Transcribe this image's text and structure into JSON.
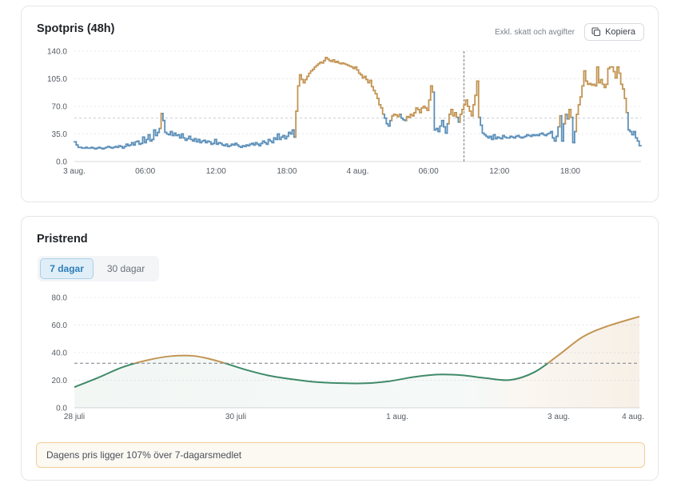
{
  "spot": {
    "title": "Spotpris (48h)",
    "note": "Exkl. skatt och avgifter",
    "copy_label": "Kopiera"
  },
  "trend": {
    "title": "Pristrend",
    "tabs": [
      {
        "label": "7 dagar",
        "active": true
      },
      {
        "label": "30 dagar",
        "active": false
      }
    ],
    "info": "Dagens pris ligger 107% över 7-dagarsmedlet"
  },
  "colors": {
    "below_avg": "#5b8fb9",
    "above_avg": "#c39554",
    "trend_low": "#3f8a68",
    "trend_high": "#c39554"
  },
  "chart_data": [
    {
      "type": "line",
      "style": "step",
      "title": "Spotpris (48h)",
      "y_ticks": [
        "0.0",
        "35.0",
        "70.0",
        "105.0",
        "140.0"
      ],
      "ylim": [
        0,
        140
      ],
      "x_ticks": [
        "3 aug.",
        "06:00",
        "12:00",
        "18:00",
        "4 aug.",
        "06:00",
        "12:00",
        "18:00"
      ],
      "x_tick_hours": [
        0,
        6,
        12,
        18,
        24,
        30,
        36,
        42
      ],
      "x_range_hours": [
        0,
        48
      ],
      "average": 55,
      "current_hour": 33,
      "interval_minutes": 15,
      "values": [
        25,
        21,
        18,
        18,
        17,
        17,
        18,
        17,
        17,
        18,
        17,
        16,
        17,
        18,
        17,
        16,
        17,
        18,
        19,
        18,
        17,
        18,
        19,
        18,
        20,
        19,
        17,
        19,
        22,
        20,
        21,
        24,
        21,
        25,
        26,
        22,
        23,
        31,
        24,
        28,
        34,
        26,
        28,
        40,
        33,
        37,
        42,
        61,
        52,
        37,
        35,
        34,
        38,
        33,
        36,
        33,
        34,
        30,
        35,
        30,
        27,
        29,
        32,
        28,
        26,
        29,
        25,
        28,
        24,
        26,
        27,
        24,
        26,
        25,
        22,
        23,
        28,
        22,
        24,
        23,
        21,
        20,
        22,
        19,
        20,
        22,
        21,
        23,
        21,
        19,
        18,
        20,
        19,
        21,
        20,
        22,
        23,
        21,
        24,
        22,
        20,
        23,
        26,
        24,
        22,
        28,
        26,
        24,
        30,
        28,
        35,
        28,
        31,
        33,
        29,
        32,
        37,
        35,
        40,
        31,
        64,
        96,
        110,
        104,
        100,
        104,
        108,
        112,
        115,
        117,
        120,
        122,
        124,
        126,
        125,
        128,
        132,
        130,
        128,
        127,
        129,
        126,
        127,
        125,
        124,
        125,
        124,
        123,
        122,
        121,
        120,
        118,
        120,
        116,
        112,
        110,
        106,
        108,
        104,
        100,
        103,
        95,
        90,
        86,
        80,
        72,
        68,
        60,
        55,
        48,
        45,
        52,
        58,
        60,
        59,
        57,
        60,
        55,
        53,
        52,
        57,
        56,
        60,
        58,
        62,
        68,
        66,
        62,
        68,
        70,
        68,
        65,
        78,
        96,
        88,
        40,
        42,
        38,
        45,
        52,
        44,
        36,
        48,
        60,
        66,
        58,
        62,
        56,
        50,
        60,
        66,
        72,
        78,
        70,
        64,
        58,
        72,
        84,
        102,
        56,
        46,
        36,
        34,
        32,
        30,
        32,
        28,
        34,
        29,
        31,
        30,
        29,
        33,
        31,
        30,
        30,
        32,
        31,
        30,
        32,
        33,
        31,
        30,
        31,
        32,
        34,
        33,
        32,
        34,
        33,
        34,
        33,
        35,
        36,
        34,
        33,
        35,
        36,
        38,
        30,
        26,
        32,
        44,
        58,
        26,
        48,
        60,
        54,
        66,
        56,
        24,
        38,
        60,
        72,
        82,
        96,
        115,
        102,
        98,
        99,
        97,
        98,
        96,
        120,
        100,
        104,
        98,
        94,
        98,
        118,
        120,
        120,
        114,
        106,
        120,
        112,
        98,
        92,
        80,
        62,
        40,
        38,
        34,
        38,
        30,
        26,
        20
      ]
    },
    {
      "type": "area",
      "title": "Pristrend",
      "y_ticks": [
        "0.0",
        "20.0",
        "40.0",
        "60.0",
        "80.0"
      ],
      "ylim": [
        0,
        80
      ],
      "x_ticks": [
        "28 juli",
        "30 juli",
        "1 aug.",
        "3 aug.",
        "4 aug."
      ],
      "x_tick_days": [
        0,
        2,
        4,
        6,
        7
      ],
      "x_range_days": [
        0,
        7
      ],
      "average": 32.3,
      "x_days": [
        0,
        0.3,
        0.6,
        0.9,
        1.2,
        1.5,
        1.8,
        2.1,
        2.4,
        2.7,
        3.0,
        3.3,
        3.6,
        3.9,
        4.2,
        4.5,
        4.8,
        5.1,
        5.4,
        5.7,
        6.0,
        6.3,
        6.6,
        7.0
      ],
      "values": [
        15,
        22,
        29.5,
        34.5,
        37.5,
        37.5,
        33.5,
        28,
        23.5,
        20.7,
        18.7,
        17.9,
        17.8,
        19.3,
        22.3,
        24.1,
        23.6,
        21.5,
        20.2,
        25.9,
        38.3,
        51.5,
        59.1,
        66.2
      ]
    }
  ]
}
